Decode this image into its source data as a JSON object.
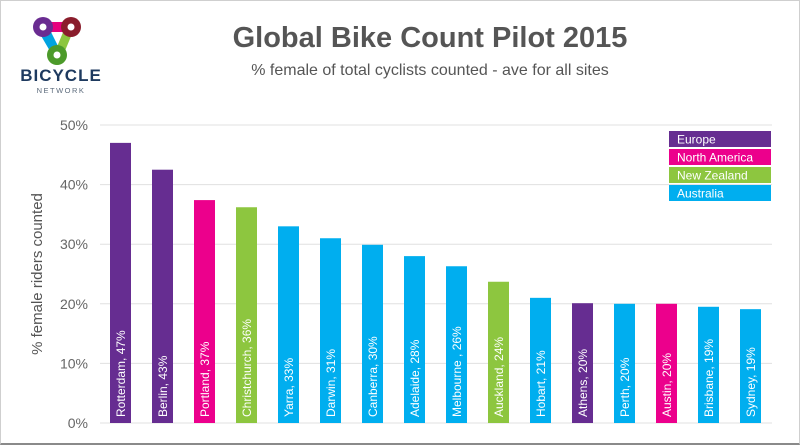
{
  "logo": {
    "word": "BICYCLE",
    "sub": "NETWORK",
    "colors": [
      "#6a2c91",
      "#e6007e",
      "#8a1d2c",
      "#00a3e0",
      "#8cc63f",
      "#4c9a2a"
    ]
  },
  "chart_data": {
    "type": "bar",
    "title": "Global Bike Count Pilot 2015",
    "subtitle": "% female of total cyclists counted - ave for all sites",
    "xlabel": "",
    "ylabel": "% female riders counted",
    "ylim": [
      0,
      50
    ],
    "yticks": [
      0,
      10,
      20,
      30,
      40,
      50
    ],
    "ytick_labels": [
      "0%",
      "10%",
      "20%",
      "30%",
      "40%",
      "50%"
    ],
    "grid": true,
    "legend_position": "top-right",
    "legend": [
      {
        "name": "Europe",
        "color": "#662d91"
      },
      {
        "name": "North America",
        "color": "#ec008c"
      },
      {
        "name": "New Zealand",
        "color": "#8dc63f"
      },
      {
        "name": "Australia",
        "color": "#00aeef"
      }
    ],
    "categories": [
      "Rotterdam",
      "Berlin",
      "Portland",
      "Christchurch",
      "Yarra",
      "Darwin",
      "Canberra",
      "Adelaide",
      "Melbourne ",
      "Auckland",
      "Hobart",
      "Athens",
      "Perth",
      "Austin",
      "Brisbane",
      "Sydney"
    ],
    "values": [
      47,
      42.5,
      37.4,
      36.2,
      33,
      31,
      29.9,
      28,
      26.3,
      23.7,
      21,
      20.1,
      20,
      20,
      19.5,
      19.1
    ],
    "regions": [
      "Europe",
      "Europe",
      "North America",
      "New Zealand",
      "Australia",
      "Australia",
      "Australia",
      "Australia",
      "Australia",
      "New Zealand",
      "Australia",
      "Europe",
      "Australia",
      "North America",
      "Australia",
      "Australia"
    ],
    "bar_labels": [
      "Rotterdam, 47%",
      "Berlin, 43%",
      "Portland, 37%",
      "Christchurch, 36%",
      "Yarra, 33%",
      "Darwin, 31%",
      "Canberra, 30%",
      "Adelaide, 28%",
      "Melbourne , 26%",
      "Auckland, 24%",
      "Hobart, 21%",
      "Athens, 20%",
      "Perth, 20%",
      "Austin, 20%",
      "Brisbane, 19%",
      "Sydney, 19%"
    ]
  }
}
